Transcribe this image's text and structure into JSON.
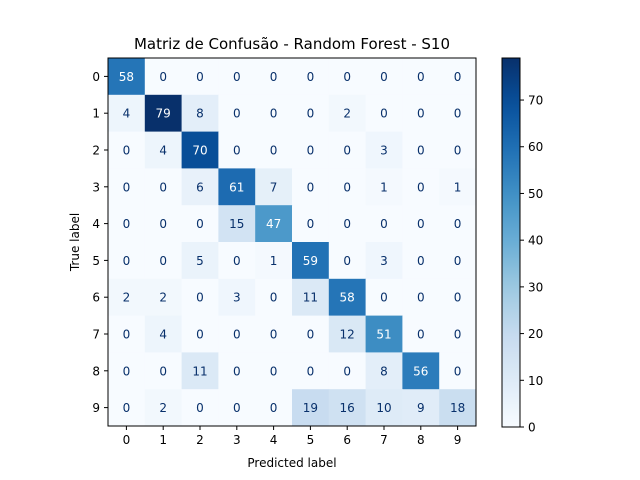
{
  "chart_data": {
    "type": "heatmap",
    "title": "Matriz de Confusão - Random Forest - S10",
    "xlabel": "Predicted label",
    "ylabel": "True label",
    "x_labels": [
      "0",
      "1",
      "2",
      "3",
      "4",
      "5",
      "6",
      "7",
      "8",
      "9"
    ],
    "y_labels": [
      "0",
      "1",
      "2",
      "3",
      "4",
      "5",
      "6",
      "7",
      "8",
      "9"
    ],
    "matrix": [
      [
        58,
        0,
        0,
        0,
        0,
        0,
        0,
        0,
        0,
        0
      ],
      [
        4,
        79,
        8,
        0,
        0,
        0,
        2,
        0,
        0,
        0
      ],
      [
        0,
        4,
        70,
        0,
        0,
        0,
        0,
        3,
        0,
        0
      ],
      [
        0,
        0,
        6,
        61,
        7,
        0,
        0,
        1,
        0,
        1
      ],
      [
        0,
        0,
        0,
        15,
        47,
        0,
        0,
        0,
        0,
        0
      ],
      [
        0,
        0,
        5,
        0,
        1,
        59,
        0,
        3,
        0,
        0
      ],
      [
        2,
        2,
        0,
        3,
        0,
        11,
        58,
        0,
        0,
        0
      ],
      [
        0,
        4,
        0,
        0,
        0,
        0,
        12,
        51,
        0,
        0
      ],
      [
        0,
        0,
        11,
        0,
        0,
        0,
        0,
        8,
        56,
        0
      ],
      [
        0,
        2,
        0,
        0,
        0,
        19,
        16,
        10,
        9,
        18
      ]
    ],
    "colormap": "Blues",
    "value_range": [
      0,
      79
    ],
    "colorbar_ticks": [
      "0",
      "10",
      "20",
      "30",
      "40",
      "50",
      "60",
      "70"
    ],
    "grid": false
  }
}
